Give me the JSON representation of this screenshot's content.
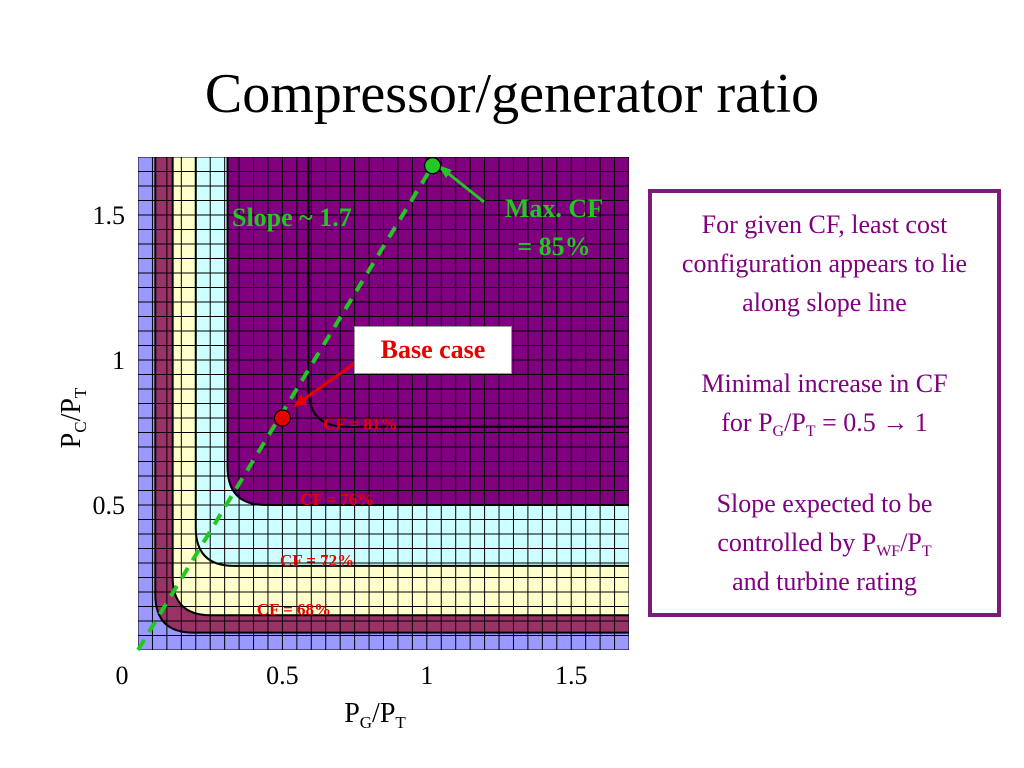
{
  "title": "Compressor/generator ratio",
  "chart_data": {
    "type": "contour",
    "xlabel": {
      "main": "P",
      "sub1": "G",
      "mid": "/P",
      "sub2": "T"
    },
    "ylabel": {
      "main": "P",
      "sub1": "C",
      "mid": "/P",
      "sub2": "T"
    },
    "xlim": [
      0,
      1.7
    ],
    "ylim": [
      0,
      1.7
    ],
    "x_ticks": [
      {
        "value": 0,
        "label": "0"
      },
      {
        "value": 0.5,
        "label": "0.5"
      },
      {
        "value": 1,
        "label": "1"
      },
      {
        "value": 1.5,
        "label": "1.5"
      }
    ],
    "y_ticks": [
      {
        "value": 0.5,
        "label": "0.5"
      },
      {
        "value": 1,
        "label": "1"
      },
      {
        "value": 1.5,
        "label": "1.5"
      }
    ],
    "contours": [
      {
        "label": "CF = 68%",
        "color": "#9999ff",
        "asymptote_x": 0.06,
        "asymptote_y": 0.06,
        "label_x": 0.54,
        "label_y": 0.12
      },
      {
        "label": "CF = 72%",
        "color": "#993366",
        "asymptote_x": 0.12,
        "asymptote_y": 0.12,
        "label_x": 0.62,
        "label_y": 0.29
      },
      {
        "label": "CF = 76%",
        "color": "#ffffcc",
        "asymptote_x": 0.2,
        "asymptote_y": 0.29,
        "label_x": 0.69,
        "label_y": 0.5
      },
      {
        "label": "CF = 81%",
        "color": "#ccffff",
        "asymptote_x": 0.31,
        "asymptote_y": 0.5,
        "label_x": 0.77,
        "label_y": 0.76
      },
      {
        "label": "",
        "color": "#800080",
        "asymptote_x": 0.59,
        "asymptote_y": 0.77
      }
    ],
    "slope_line": {
      "x": [
        0,
        1.02
      ],
      "y": [
        0,
        1.67
      ],
      "label": "Slope ~ 1.7",
      "color": "#22c722"
    },
    "points": [
      {
        "name": "base",
        "x": 0.5,
        "y": 0.8,
        "color": "#e60000",
        "label": "Base case"
      },
      {
        "name": "max",
        "x": 1.02,
        "y": 1.67,
        "color": "#22c722",
        "label_line1": "Max. CF",
        "label_line2": "= 85%"
      }
    ]
  },
  "notes": {
    "p1": "For given CF, least cost configuration appears to lie along slope line",
    "p2_line1": "Minimal increase in CF",
    "p2_a": "for P",
    "p2_sub1": "G",
    "p2_b": "/P",
    "p2_sub2": "T",
    "p2_c": " = 0.5 → 1",
    "p3_line1": "Slope expected to be",
    "p3_a": "controlled by P",
    "p3_sub1": "WF",
    "p3_b": "/P",
    "p3_sub2": "T",
    "p3_line3": "and turbine rating"
  }
}
